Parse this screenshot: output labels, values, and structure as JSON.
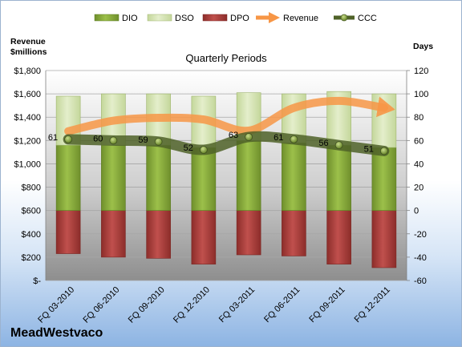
{
  "chart_data": {
    "type": "bar",
    "title": "Quarterly Periods",
    "company": "MeadWestvaco",
    "ylabel_left": [
      "Revenue",
      "$millions"
    ],
    "ylabel_right": "Days",
    "y_left": {
      "range": [
        0,
        1800
      ],
      "ticks": [
        "$-",
        "$200",
        "$400",
        "$600",
        "$800",
        "$1,000",
        "$1,200",
        "$1,400",
        "$1,600",
        "$1,800"
      ]
    },
    "y_right": {
      "range": [
        -60,
        120
      ],
      "ticks": [
        "-60",
        "-40",
        "-20",
        "0",
        "20",
        "40",
        "60",
        "80",
        "100",
        "120"
      ]
    },
    "categories": [
      "FQ 03-2010",
      "FQ 06-2010",
      "FQ 09-2010",
      "FQ 12-2010",
      "FQ 03-2011",
      "FQ 06-2011",
      "FQ 09-2011",
      "FQ 12-2011"
    ],
    "legend": [
      "DIO",
      "DSO",
      "DPO",
      "Revenue",
      "CCC"
    ],
    "series": [
      {
        "name": "DIO",
        "axis": "right",
        "values": [
          56,
          56,
          56,
          54,
          60,
          58,
          56,
          54
        ],
        "color": "#8db03e"
      },
      {
        "name": "DSO",
        "axis": "right",
        "values": [
          42,
          44,
          44,
          44,
          41,
          42,
          46,
          46
        ],
        "color": "#d7e4bd"
      },
      {
        "name": "DPO",
        "axis": "right",
        "values": [
          -37,
          -40,
          -41,
          -46,
          -38,
          -39,
          -46,
          -49
        ],
        "color": "#c0504d"
      },
      {
        "name": "Revenue",
        "axis": "left",
        "values": [
          1280,
          1370,
          1395,
          1380,
          1285,
          1480,
          1540,
          1480
        ],
        "color": "#f79646"
      },
      {
        "name": "CCC",
        "axis": "right",
        "values": [
          61,
          60,
          59,
          52,
          63,
          61,
          56,
          51
        ],
        "labels": [
          "61",
          "60",
          "59",
          "52",
          "63",
          "61",
          "56",
          "51"
        ],
        "color": "#4f6228"
      }
    ],
    "grid": true,
    "legend_position": "top"
  }
}
